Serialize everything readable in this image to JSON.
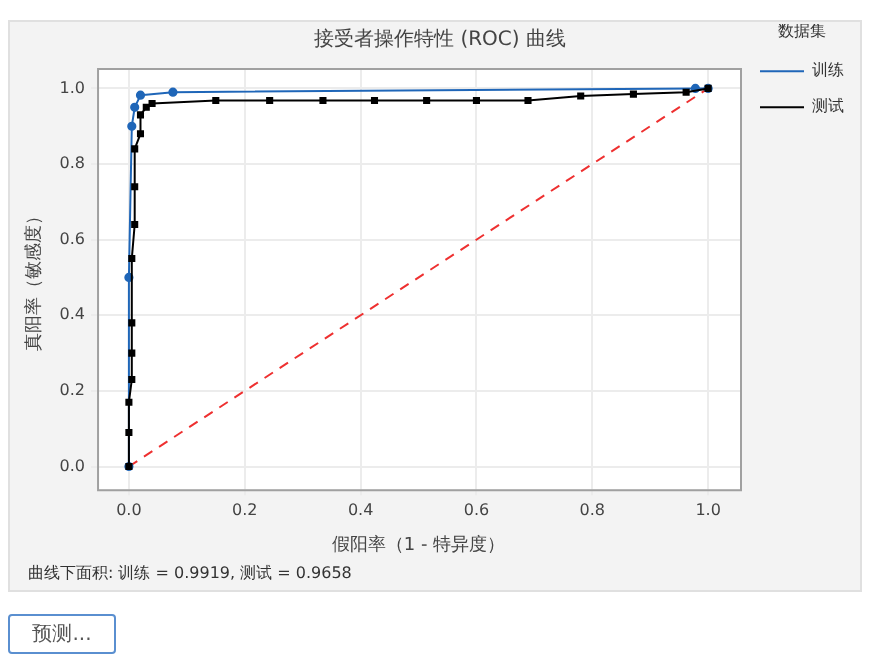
{
  "chart_data": {
    "type": "line",
    "title": "接受者操作特性 (ROC) 曲线",
    "xlabel": "假阳率（1 - 特异度）",
    "ylabel": "真阳率（敏感度）",
    "legend_title": "数据集",
    "legend": "right",
    "grid": true,
    "xlim": [
      -0.055,
      1.055
    ],
    "ylim": [
      -0.06,
      1.054
    ],
    "xticks": [
      {
        "value": 0,
        "label": "0.0"
      },
      {
        "value": 0.2,
        "label": "0.2"
      },
      {
        "value": 0.4,
        "label": "0.4"
      },
      {
        "value": 0.6,
        "label": "0.6"
      },
      {
        "value": 0.8,
        "label": "0.8"
      },
      {
        "value": 1,
        "label": "1.0"
      }
    ],
    "yticks": [
      {
        "value": 0,
        "label": "0.0"
      },
      {
        "value": 0.2,
        "label": "0.2"
      },
      {
        "value": 0.4,
        "label": "0.4"
      },
      {
        "value": 0.6,
        "label": "0.6"
      },
      {
        "value": 0.8,
        "label": "0.8"
      },
      {
        "value": 1,
        "label": "1.0"
      }
    ],
    "series": [
      {
        "type": "line",
        "color": "#ee3030",
        "line_style": "dashed",
        "marker": "none",
        "x": [
          0,
          1
        ],
        "values": [
          0,
          1
        ]
      },
      {
        "name": "训练",
        "color": "#1f66b8",
        "marker": "circle",
        "line_style": "solid",
        "x": [
          0,
          0,
          0.005,
          0.01,
          0.02,
          0.076,
          0.978,
          1
        ],
        "values": [
          0,
          0.5,
          0.9,
          0.95,
          0.982,
          0.99,
          1,
          1
        ]
      },
      {
        "name": "测试",
        "color": "#000000",
        "marker": "square",
        "line_style": "solid",
        "x": [
          0,
          0,
          0,
          0.005,
          0.005,
          0.005,
          0.005,
          0.01,
          0.01,
          0.01,
          0.02,
          0.02,
          0.03,
          0.04,
          0.15,
          0.243,
          0.335,
          0.424,
          0.514,
          0.6,
          0.689,
          0.78,
          0.871,
          0.962,
          1
        ],
        "values": [
          0,
          0.09,
          0.17,
          0.23,
          0.3,
          0.38,
          0.55,
          0.64,
          0.74,
          0.84,
          0.88,
          0.93,
          0.95,
          0.96,
          0.968,
          0.968,
          0.968,
          0.968,
          0.968,
          0.968,
          0.968,
          0.98,
          0.985,
          0.99,
          1
        ]
      }
    ],
    "annotations": [
      "曲线下面积: 训练 = 0.9919, 测试 = 0.9658",
      "预测..."
    ]
  }
}
